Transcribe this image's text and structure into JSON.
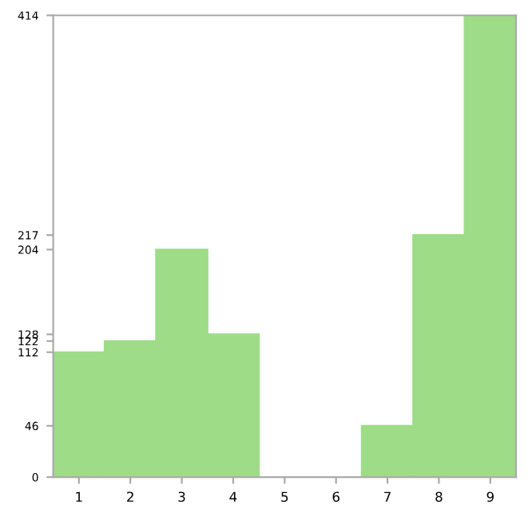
{
  "chart_data": {
    "type": "bar",
    "categories": [
      "1",
      "2",
      "3",
      "4",
      "5",
      "6",
      "7",
      "8",
      "9"
    ],
    "values": [
      112,
      122,
      204,
      128,
      0,
      0,
      46,
      217,
      414
    ],
    "color": "#9edc88",
    "ylim": [
      0,
      414
    ],
    "yticks": [
      0,
      46,
      112,
      122,
      128,
      204,
      217,
      414
    ],
    "grid": false
  }
}
